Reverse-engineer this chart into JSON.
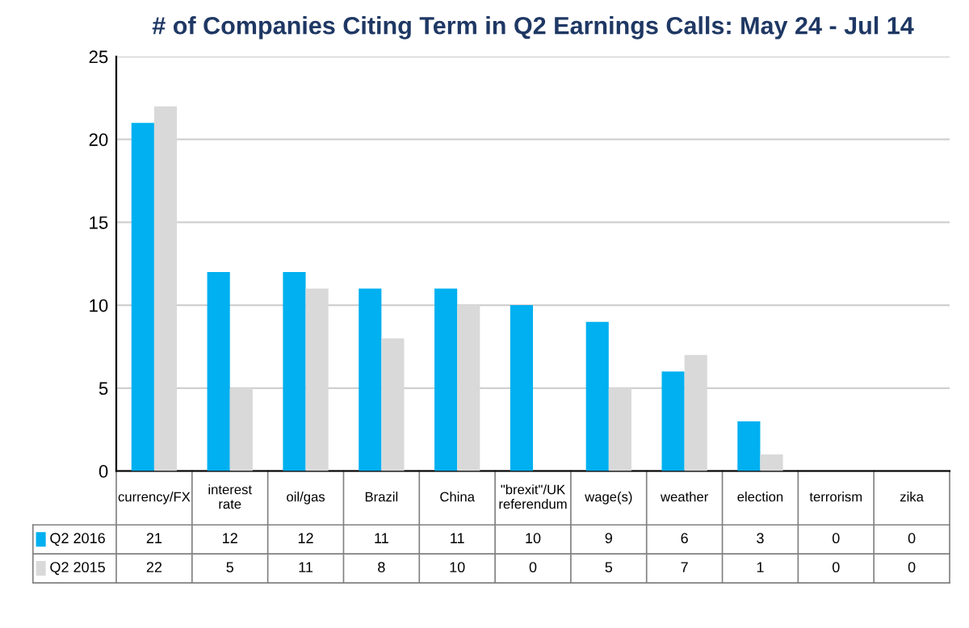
{
  "chart_data": {
    "type": "bar",
    "title": "# of Companies Citing Term in Q2 Earnings Calls: May 24 - Jul 14",
    "categories": [
      "currency/FX",
      "interest rate",
      "oil/gas",
      "Brazil",
      "China",
      "\"brexit\"/UK referendum",
      "wage(s)",
      "weather",
      "election",
      "terrorism",
      "zika"
    ],
    "series": [
      {
        "name": "Q2 2016",
        "color": "#00b0f0",
        "values": [
          21,
          12,
          12,
          11,
          11,
          10,
          9,
          6,
          3,
          0,
          0
        ]
      },
      {
        "name": "Q2 2015",
        "color": "#d9d9d9",
        "values": [
          22,
          5,
          11,
          8,
          10,
          0,
          5,
          7,
          1,
          0,
          0
        ]
      }
    ],
    "ylim": [
      0,
      25
    ],
    "yticks": [
      0,
      5,
      10,
      15,
      20,
      25
    ],
    "grid": "y",
    "data_labels": true,
    "legend": "bottom"
  }
}
